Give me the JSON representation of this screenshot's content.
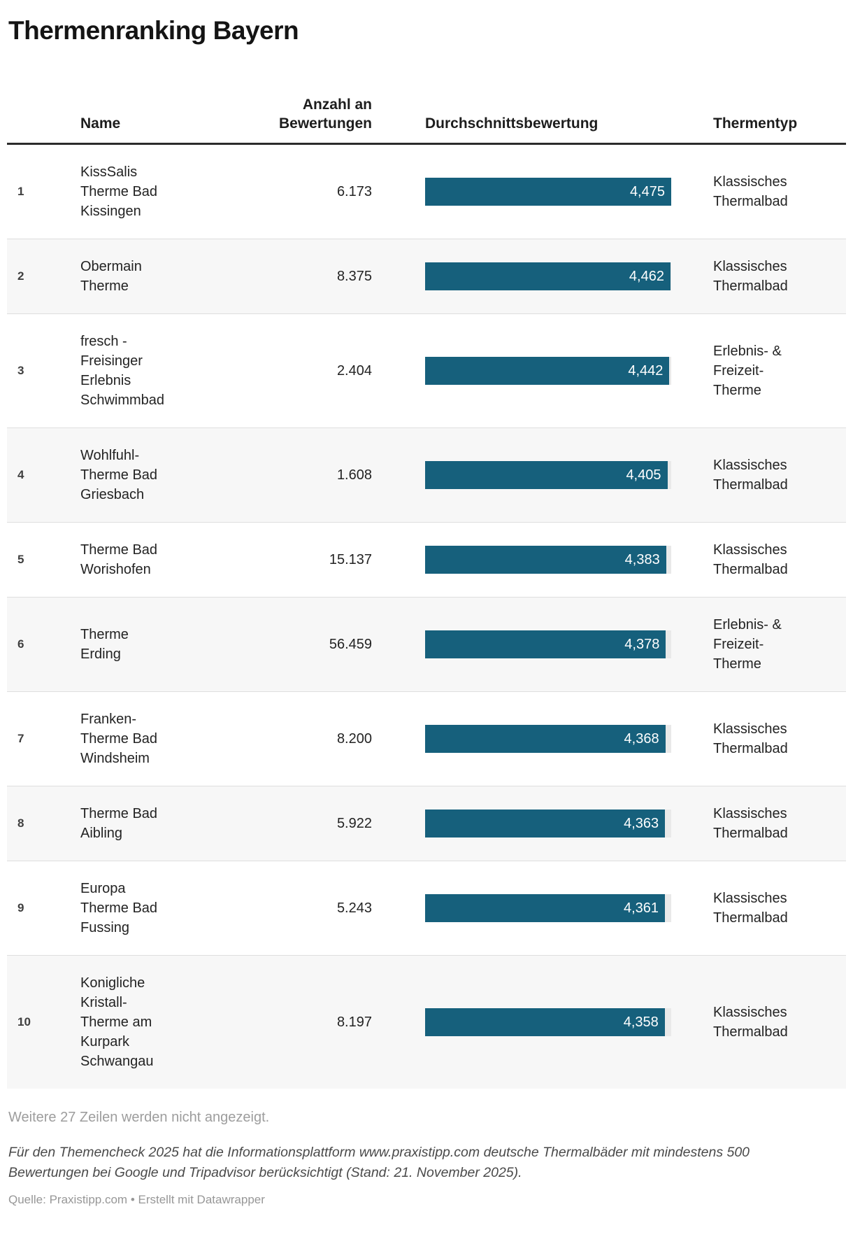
{
  "title": "Thermenranking Bayern",
  "colors": {
    "bar": "#16607c",
    "bar_label": "#ffffff",
    "alt_row_background": "#f7f7f7",
    "header_rule": "#2b2b2b",
    "row_separator": "#dedede",
    "bar_track": "#e9e9e9",
    "muted_text": "#9d9d9d"
  },
  "chart_data": {
    "type": "table",
    "title": "Thermenranking Bayern",
    "columns": {
      "name": "Name",
      "reviews": "Anzahl an\nBewertungen",
      "rating": "Durchschnittsbewertung",
      "therm_type": "Thermentyp"
    },
    "bar_column": {
      "label": "Durchschnittsbewertung",
      "scale_min": 0,
      "scale_max": 4475,
      "bar_color": "#16607c"
    },
    "rows": [
      {
        "rank": "1",
        "name": "KissSalis\nTherme Bad\nKissingen",
        "reviews": "6.173",
        "rating": 4475,
        "rating_label": "4,475",
        "type": "Klassisches\nThermalbad"
      },
      {
        "rank": "2",
        "name": "Obermain\nTherme",
        "reviews": "8.375",
        "rating": 4462,
        "rating_label": "4,462",
        "type": "Klassisches\nThermalbad"
      },
      {
        "rank": "3",
        "name": "fresch -\nFreisinger\nErlebnis\nSchwimmbad",
        "reviews": "2.404",
        "rating": 4442,
        "rating_label": "4,442",
        "type": "Erlebnis- &\nFreizeit-\nTherme"
      },
      {
        "rank": "4",
        "name": "Wohlfuhl-\nTherme Bad\nGriesbach",
        "reviews": "1.608",
        "rating": 4405,
        "rating_label": "4,405",
        "type": "Klassisches\nThermalbad"
      },
      {
        "rank": "5",
        "name": "Therme Bad\nWorishofen",
        "reviews": "15.137",
        "rating": 4383,
        "rating_label": "4,383",
        "type": "Klassisches\nThermalbad"
      },
      {
        "rank": "6",
        "name": "Therme\nErding",
        "reviews": "56.459",
        "rating": 4378,
        "rating_label": "4,378",
        "type": "Erlebnis- &\nFreizeit-\nTherme"
      },
      {
        "rank": "7",
        "name": "Franken-\nTherme Bad\nWindsheim",
        "reviews": "8.200",
        "rating": 4368,
        "rating_label": "4,368",
        "type": "Klassisches\nThermalbad"
      },
      {
        "rank": "8",
        "name": "Therme Bad\nAibling",
        "reviews": "5.922",
        "rating": 4363,
        "rating_label": "4,363",
        "type": "Klassisches\nThermalbad"
      },
      {
        "rank": "9",
        "name": "Europa\nTherme Bad\nFussing",
        "reviews": "5.243",
        "rating": 4361,
        "rating_label": "4,361",
        "type": "Klassisches\nThermalbad"
      },
      {
        "rank": "10",
        "name": "Konigliche\nKristall-\nTherme am\nKurpark\nSchwangau",
        "reviews": "8.197",
        "rating": 4358,
        "rating_label": "4,358",
        "type": "Klassisches\nThermalbad"
      }
    ]
  },
  "footer": {
    "more_rows": "Weitere 27 Zeilen werden nicht angezeigt.",
    "notes": "Für den Themencheck 2025 hat die Informationsplattform www.praxistipp.com deutsche Thermalbäder mit mindestens 500 Bewertungen bei Google und Tripadvisor berücksichtigt (Stand: 21. November 2025).",
    "source_label": "Quelle: Praxistipp.com",
    "source_separator": "•",
    "credit": "Erstellt mit Datawrapper"
  }
}
